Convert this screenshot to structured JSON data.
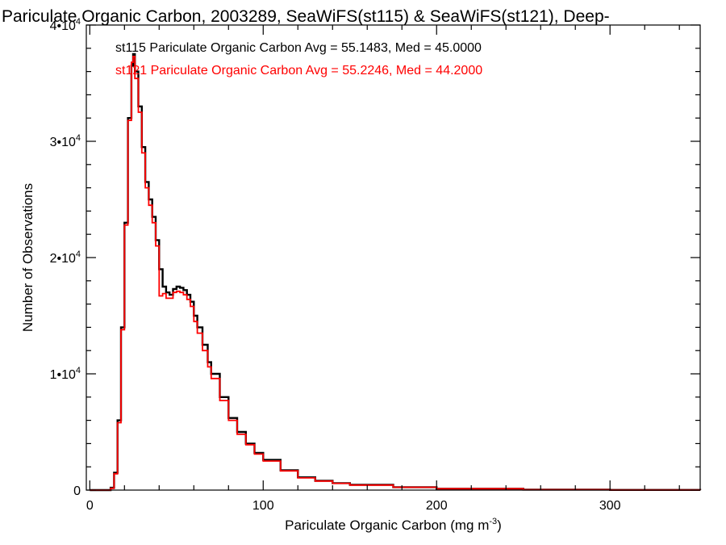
{
  "colors": {
    "st115": "#000000",
    "st121": "#ff0000",
    "axes": "#000000"
  },
  "chart_data": {
    "type": "line",
    "title": "Pariculate Organic Carbon, 2003289, SeaWiFS(st115) & SeaWiFS(st121), Deep-",
    "xlabel": "Pariculate Organic Carbon (mg m",
    "xlabel_exponent": "-3",
    "xlabel_close": ")",
    "ylabel": "Number of Observations",
    "xlim": [
      -2,
      352
    ],
    "ylim": [
      0,
      40000
    ],
    "xticks": [
      0,
      100,
      200,
      300
    ],
    "xtick_labels": [
      "0",
      "100",
      "200",
      "300"
    ],
    "yticks": [
      0,
      10000,
      20000,
      30000,
      40000
    ],
    "ytick_labels": [
      {
        "mantissa": "0",
        "exp": ""
      },
      {
        "mantissa": "1•10",
        "exp": "4"
      },
      {
        "mantissa": "2•10",
        "exp": "4"
      },
      {
        "mantissa": "3•10",
        "exp": "4"
      },
      {
        "mantissa": "4•10",
        "exp": "4"
      }
    ],
    "grid": false,
    "legend_position": "top-left",
    "series": [
      {
        "name": "st115",
        "label": "st115 Pariculate Organic Carbon Avg = 55.1483, Med = 45.0000",
        "x": [
          0,
          10,
          12,
          14,
          16,
          18,
          20,
          22,
          24,
          25,
          26,
          28,
          30,
          32,
          34,
          36,
          38,
          40,
          42,
          44,
          46,
          48,
          50,
          52,
          54,
          56,
          58,
          60,
          62,
          65,
          68,
          70,
          75,
          80,
          85,
          90,
          95,
          100,
          110,
          120,
          130,
          140,
          150,
          175,
          200,
          250,
          300,
          352
        ],
        "y": [
          0,
          0,
          200,
          1500,
          6000,
          14000,
          23000,
          32000,
          36500,
          37500,
          36000,
          33000,
          29500,
          26500,
          25000,
          23500,
          21500,
          19000,
          17500,
          17000,
          16800,
          17300,
          17500,
          17400,
          17200,
          16800,
          16200,
          15000,
          14000,
          12500,
          11000,
          10000,
          8000,
          6200,
          5000,
          4000,
          3200,
          2600,
          1700,
          1100,
          800,
          600,
          450,
          250,
          120,
          40,
          15,
          5
        ]
      },
      {
        "name": "st121",
        "label": "st121 Pariculate Organic Carbon Avg = 55.2246, Med = 44.2000",
        "x": [
          0,
          10,
          12,
          14,
          16,
          18,
          20,
          22,
          24,
          25,
          26,
          28,
          30,
          32,
          34,
          36,
          38,
          40,
          42,
          44,
          46,
          48,
          50,
          52,
          54,
          56,
          58,
          60,
          62,
          65,
          68,
          70,
          75,
          80,
          85,
          90,
          95,
          100,
          110,
          120,
          130,
          140,
          150,
          175,
          200,
          250,
          300,
          352
        ],
        "y": [
          0,
          0,
          150,
          1400,
          5800,
          13800,
          22800,
          31800,
          36800,
          37300,
          35400,
          32500,
          29000,
          26000,
          24500,
          23000,
          21000,
          16700,
          16900,
          16500,
          16500,
          17000,
          17100,
          17000,
          16800,
          16400,
          15800,
          14500,
          13500,
          12000,
          10600,
          9600,
          7700,
          6000,
          4800,
          3900,
          3100,
          2500,
          1650,
          1050,
          780,
          580,
          430,
          240,
          115,
          38,
          14,
          4
        ]
      }
    ]
  }
}
